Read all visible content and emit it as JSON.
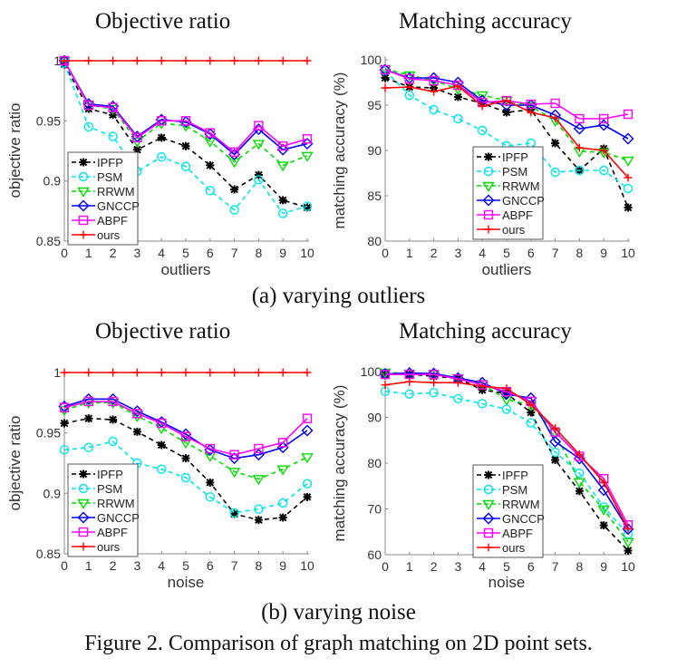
{
  "figure": {
    "caption": "Figure 2.  Comparison of graph matching on 2D point sets.",
    "subcaptions": [
      "(a) varying outliers",
      "(b) varying noise"
    ]
  },
  "styles": {
    "IPFP": {
      "color": "#000000",
      "dash": true,
      "marker": "asterisk"
    },
    "PSM": {
      "color": "#00e5ee",
      "dash": true,
      "marker": "circle"
    },
    "RRWM": {
      "color": "#00dd00",
      "dash": true,
      "marker": "triangle-down"
    },
    "GNCCP": {
      "color": "#0000ff",
      "dash": false,
      "marker": "diamond"
    },
    "ABPF": {
      "color": "#ff00ff",
      "dash": false,
      "marker": "square"
    },
    "ours": {
      "color": "#ff0000",
      "dash": false,
      "marker": "plus"
    }
  },
  "chart_data": [
    {
      "type": "line",
      "title": "Objective ratio",
      "xlabel": "outliers",
      "ylabel": "objective ratio",
      "xlim": [
        0,
        10
      ],
      "ylim": [
        0.85,
        1
      ],
      "xticks": [
        "0",
        "1",
        "2",
        "3",
        "4",
        "5",
        "6",
        "7",
        "8",
        "9",
        "10"
      ],
      "yticks": [
        {
          "v": 0.85,
          "t": "0.85"
        },
        {
          "v": 0.9,
          "t": "0.9"
        },
        {
          "v": 0.95,
          "t": "0.95"
        },
        {
          "v": 1,
          "t": "1"
        }
      ],
      "legend": "bottom-left",
      "x": [
        0,
        1,
        2,
        3,
        4,
        5,
        6,
        7,
        8,
        9,
        10
      ],
      "series": [
        {
          "name": "IPFP",
          "values": [
            0.997,
            0.96,
            0.955,
            0.926,
            0.936,
            0.929,
            0.913,
            0.893,
            0.905,
            0.884,
            0.878
          ]
        },
        {
          "name": "PSM",
          "values": [
            0.998,
            0.945,
            0.937,
            0.908,
            0.92,
            0.912,
            0.892,
            0.876,
            0.901,
            0.873,
            0.879
          ]
        },
        {
          "name": "RRWM",
          "values": [
            1.0,
            0.963,
            0.96,
            0.933,
            0.948,
            0.946,
            0.933,
            0.916,
            0.931,
            0.913,
            0.921
          ]
        },
        {
          "name": "GNCCP",
          "values": [
            1.0,
            0.964,
            0.962,
            0.937,
            0.951,
            0.949,
            0.939,
            0.922,
            0.943,
            0.926,
            0.931
          ]
        },
        {
          "name": "ABPF",
          "values": [
            1.0,
            0.963,
            0.961,
            0.936,
            0.95,
            0.95,
            0.94,
            0.924,
            0.946,
            0.929,
            0.935
          ]
        },
        {
          "name": "ours",
          "values": [
            1,
            1,
            1,
            1,
            1,
            1,
            1,
            1,
            1,
            1,
            1
          ]
        }
      ]
    },
    {
      "type": "line",
      "title": "Matching accuracy",
      "xlabel": "outliers",
      "ylabel": "matching accuracy (%)",
      "xlim": [
        0,
        10
      ],
      "ylim": [
        80,
        100
      ],
      "xticks": [
        "0",
        "1",
        "2",
        "3",
        "4",
        "5",
        "6",
        "7",
        "8",
        "9",
        "10"
      ],
      "yticks": [
        {
          "v": 80,
          "t": "80"
        },
        {
          "v": 85,
          "t": "85"
        },
        {
          "v": 90,
          "t": "90"
        },
        {
          "v": 95,
          "t": "95"
        },
        {
          "v": 100,
          "t": "100"
        }
      ],
      "legend": "bottom-center",
      "x": [
        0,
        1,
        2,
        3,
        4,
        5,
        6,
        7,
        8,
        9,
        10
      ],
      "series": [
        {
          "name": "IPFP",
          "values": [
            98.0,
            97.0,
            96.9,
            95.9,
            95.2,
            94.2,
            94.5,
            90.8,
            87.8,
            90.2,
            83.7
          ]
        },
        {
          "name": "PSM",
          "values": [
            98.8,
            96.1,
            94.5,
            93.5,
            92.2,
            90.5,
            90.8,
            87.6,
            87.8,
            87.8,
            85.8
          ]
        },
        {
          "name": "RRWM",
          "values": [
            99.0,
            98.3,
            97.7,
            96.8,
            96.1,
            95.5,
            94.9,
            93.3,
            89.9,
            89.8,
            88.9
          ]
        },
        {
          "name": "GNCCP",
          "values": [
            98.9,
            98.0,
            98.0,
            97.5,
            95.5,
            95.0,
            95.0,
            93.9,
            92.4,
            92.8,
            91.3
          ]
        },
        {
          "name": "ABPF",
          "values": [
            98.9,
            97.9,
            97.7,
            97.2,
            95.3,
            95.5,
            95.1,
            95.2,
            93.5,
            93.5,
            94.0
          ]
        },
        {
          "name": "ours",
          "values": [
            96.9,
            97.0,
            96.5,
            97.1,
            94.9,
            95.5,
            94.2,
            93.6,
            90.3,
            90.0,
            87.0
          ]
        }
      ]
    },
    {
      "type": "line",
      "title": "Objective ratio",
      "xlabel": "noise",
      "ylabel": "objective ratio",
      "xlim": [
        0,
        10
      ],
      "ylim": [
        0.85,
        1
      ],
      "xticks": [
        "0",
        "1",
        "2",
        "3",
        "4",
        "5",
        "6",
        "7",
        "8",
        "9",
        "10"
      ],
      "yticks": [
        {
          "v": 0.85,
          "t": "0.85"
        },
        {
          "v": 0.9,
          "t": "0.9"
        },
        {
          "v": 0.95,
          "t": "0.95"
        },
        {
          "v": 1,
          "t": "1"
        }
      ],
      "legend": "bottom-left",
      "x": [
        0,
        1,
        2,
        3,
        4,
        5,
        6,
        7,
        8,
        9,
        10
      ],
      "series": [
        {
          "name": "IPFP",
          "values": [
            0.958,
            0.962,
            0.961,
            0.951,
            0.94,
            0.929,
            0.909,
            0.883,
            0.878,
            0.88,
            0.897
          ]
        },
        {
          "name": "PSM",
          "values": [
            0.936,
            0.938,
            0.943,
            0.925,
            0.92,
            0.913,
            0.897,
            0.884,
            0.887,
            0.892,
            0.908
          ]
        },
        {
          "name": "RRWM",
          "values": [
            0.969,
            0.975,
            0.975,
            0.964,
            0.954,
            0.942,
            0.931,
            0.918,
            0.912,
            0.92,
            0.93
          ]
        },
        {
          "name": "GNCCP",
          "values": [
            0.972,
            0.978,
            0.978,
            0.968,
            0.959,
            0.949,
            0.936,
            0.929,
            0.932,
            0.938,
            0.952
          ]
        },
        {
          "name": "ABPF",
          "values": [
            0.971,
            0.976,
            0.976,
            0.966,
            0.958,
            0.947,
            0.937,
            0.932,
            0.937,
            0.942,
            0.962
          ]
        },
        {
          "name": "ours",
          "values": [
            1,
            1,
            1,
            1,
            1,
            1,
            1,
            1,
            1,
            1,
            1
          ]
        }
      ]
    },
    {
      "type": "line",
      "title": "Matching accuracy",
      "xlabel": "noise",
      "ylabel": "matching accuracy (%)",
      "xlim": [
        0,
        10
      ],
      "ylim": [
        60,
        100
      ],
      "xticks": [
        "0",
        "1",
        "2",
        "3",
        "4",
        "5",
        "6",
        "7",
        "8",
        "9",
        "10"
      ],
      "yticks": [
        {
          "v": 60,
          "t": "60"
        },
        {
          "v": 70,
          "t": "70"
        },
        {
          "v": 80,
          "t": "80"
        },
        {
          "v": 90,
          "t": "90"
        },
        {
          "v": 100,
          "t": "100"
        }
      ],
      "legend": "bottom-center",
      "x": [
        0,
        1,
        2,
        3,
        4,
        5,
        6,
        7,
        8,
        9,
        10
      ],
      "series": [
        {
          "name": "IPFP",
          "values": [
            99.4,
            99.4,
            99.0,
            98.5,
            96.0,
            95.2,
            91.1,
            80.7,
            73.9,
            66.4,
            60.9
          ]
        },
        {
          "name": "PSM",
          "values": [
            95.7,
            95.1,
            95.4,
            94.1,
            93.0,
            91.8,
            88.8,
            82.4,
            77.8,
            70.4,
            64.5
          ]
        },
        {
          "name": "RRWM",
          "values": [
            99.8,
            99.6,
            99.5,
            98.6,
            97.3,
            93.9,
            92.7,
            86.6,
            75.9,
            69.9,
            62.8
          ]
        },
        {
          "name": "GNCCP",
          "values": [
            99.5,
            99.7,
            99.6,
            98.6,
            97.6,
            95.1,
            94.2,
            84.7,
            81.0,
            74.1,
            65.6
          ]
        },
        {
          "name": "ABPF",
          "values": [
            99.4,
            99.4,
            99.4,
            98.4,
            97.1,
            95.6,
            93.5,
            86.8,
            81.5,
            76.6,
            66.5
          ]
        },
        {
          "name": "ours",
          "values": [
            97.1,
            97.8,
            97.6,
            97.6,
            96.8,
            96.3,
            92.8,
            87.6,
            81.9,
            75.8,
            65.7
          ]
        }
      ]
    }
  ]
}
